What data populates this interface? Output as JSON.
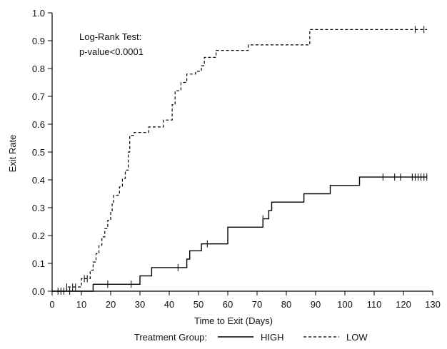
{
  "chart_data": {
    "type": "line",
    "step": true,
    "title": "",
    "xlabel": "Time to Exit (Days)",
    "ylabel": "Exit Rate",
    "xlim": [
      0,
      130
    ],
    "ylim": [
      0,
      1.0
    ],
    "x_ticks": [
      0,
      10,
      20,
      30,
      40,
      50,
      60,
      70,
      80,
      90,
      100,
      110,
      120,
      130
    ],
    "y_ticks": [
      0.0,
      0.1,
      0.2,
      0.3,
      0.4,
      0.5,
      0.6,
      0.7,
      0.8,
      0.9,
      1.0
    ],
    "y_tick_labels": [
      "0.0",
      "0.1",
      "0.2",
      "0.3",
      "0.4",
      "0.5",
      "0.6",
      "0.7",
      "0.8",
      "0.9",
      "1.0"
    ],
    "grid": false,
    "annotation": [
      "Log-Rank Test:",
      "p-value<0.0001"
    ],
    "legend": {
      "position": "bottom",
      "title": "Treatment Group:",
      "entries": [
        {
          "name": "HIGH",
          "style": "solid"
        },
        {
          "name": "LOW",
          "style": "dashed"
        }
      ]
    },
    "series": [
      {
        "name": "HIGH",
        "style": "solid",
        "color": "#000000",
        "points": [
          [
            0,
            0
          ],
          [
            14,
            0
          ],
          [
            14,
            0.025
          ],
          [
            30,
            0.025
          ],
          [
            30,
            0.055
          ],
          [
            34,
            0.055
          ],
          [
            34,
            0.085
          ],
          [
            46,
            0.085
          ],
          [
            46,
            0.115
          ],
          [
            47,
            0.115
          ],
          [
            47,
            0.145
          ],
          [
            51,
            0.145
          ],
          [
            51,
            0.17
          ],
          [
            60,
            0.17
          ],
          [
            60,
            0.23
          ],
          [
            72,
            0.23
          ],
          [
            72,
            0.26
          ],
          [
            74,
            0.26
          ],
          [
            74,
            0.29
          ],
          [
            75,
            0.29
          ],
          [
            75,
            0.32
          ],
          [
            86,
            0.32
          ],
          [
            86,
            0.35
          ],
          [
            95,
            0.35
          ],
          [
            95,
            0.38
          ],
          [
            105,
            0.38
          ],
          [
            105,
            0.41
          ],
          [
            128,
            0.41
          ]
        ],
        "censored": [
          6,
          19,
          27,
          43,
          53,
          72,
          113,
          117,
          119,
          123,
          124,
          125,
          126,
          127,
          128
        ]
      },
      {
        "name": "LOW",
        "style": "dashed",
        "color": "#000000",
        "points": [
          [
            0,
            0
          ],
          [
            5,
            0
          ],
          [
            5,
            0.015
          ],
          [
            10,
            0.015
          ],
          [
            10,
            0.045
          ],
          [
            13,
            0.045
          ],
          [
            13,
            0.075
          ],
          [
            14,
            0.075
          ],
          [
            14,
            0.105
          ],
          [
            15,
            0.105
          ],
          [
            15,
            0.135
          ],
          [
            16,
            0.135
          ],
          [
            16,
            0.165
          ],
          [
            17,
            0.165
          ],
          [
            17,
            0.195
          ],
          [
            18,
            0.195
          ],
          [
            18,
            0.225
          ],
          [
            19,
            0.225
          ],
          [
            19,
            0.255
          ],
          [
            20,
            0.255
          ],
          [
            20,
            0.285
          ],
          [
            20.5,
            0.285
          ],
          [
            20.5,
            0.315
          ],
          [
            21,
            0.315
          ],
          [
            21,
            0.345
          ],
          [
            23,
            0.345
          ],
          [
            23,
            0.375
          ],
          [
            24,
            0.375
          ],
          [
            24,
            0.405
          ],
          [
            25,
            0.405
          ],
          [
            25,
            0.435
          ],
          [
            26,
            0.435
          ],
          [
            26,
            0.5
          ],
          [
            26.5,
            0.5
          ],
          [
            26.5,
            0.56
          ],
          [
            28,
            0.56
          ],
          [
            28,
            0.57
          ],
          [
            33,
            0.57
          ],
          [
            33,
            0.59
          ],
          [
            38,
            0.59
          ],
          [
            38,
            0.615
          ],
          [
            41,
            0.615
          ],
          [
            41,
            0.67
          ],
          [
            42,
            0.67
          ],
          [
            42,
            0.72
          ],
          [
            44,
            0.72
          ],
          [
            44,
            0.75
          ],
          [
            46,
            0.75
          ],
          [
            46,
            0.78
          ],
          [
            49,
            0.78
          ],
          [
            49,
            0.79
          ],
          [
            51,
            0.79
          ],
          [
            51,
            0.81
          ],
          [
            52,
            0.81
          ],
          [
            52,
            0.84
          ],
          [
            56,
            0.84
          ],
          [
            56,
            0.865
          ],
          [
            67,
            0.865
          ],
          [
            67,
            0.885
          ],
          [
            88,
            0.885
          ],
          [
            88,
            0.94
          ],
          [
            128,
            0.94
          ]
        ],
        "censored": [
          2,
          3,
          4,
          5,
          7,
          8,
          11,
          12,
          124,
          127
        ]
      }
    ]
  }
}
